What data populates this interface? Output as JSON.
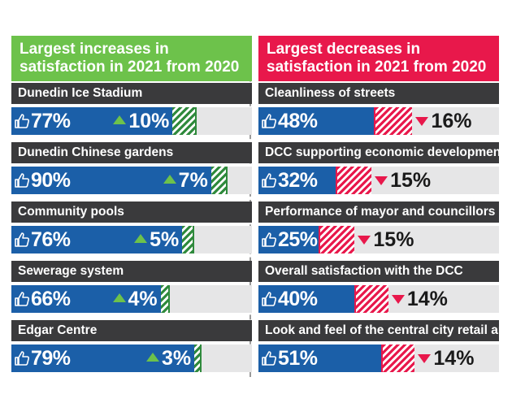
{
  "colors": {
    "increase_header": "#6dc24b",
    "decrease_header": "#e8184b",
    "bar_fill": "#1b5fa8",
    "label_bg": "#3a3a3c",
    "up_hatch": "#2f8a3c",
    "down_hatch": "#e8184b"
  },
  "icons": {
    "satisfaction": "thumbs-up-icon",
    "increase": "triangle-up-icon",
    "decrease": "triangle-down-icon"
  },
  "chart_data": [
    {
      "type": "bar",
      "title": "Largest increases in satisfaction in 2021 from 2020",
      "unit": "%",
      "items": [
        {
          "label": "Dunedin Ice Stadium",
          "value": 77,
          "value_text": "77%",
          "change": 10,
          "change_text": "10%"
        },
        {
          "label": "Dunedin Chinese gardens",
          "value": 90,
          "value_text": "90%",
          "change": 7,
          "change_text": "7%"
        },
        {
          "label": "Community pools",
          "value": 76,
          "value_text": "76%",
          "change": 5,
          "change_text": "5%"
        },
        {
          "label": "Sewerage system",
          "value": 66,
          "value_text": "66%",
          "change": 4,
          "change_text": "4%"
        },
        {
          "label": "Edgar Centre",
          "value": 79,
          "value_text": "79%",
          "change": 3,
          "change_text": "3%"
        }
      ]
    },
    {
      "type": "bar",
      "title": "Largest decreases in satisfaction in 2021 from 2020",
      "unit": "%",
      "items": [
        {
          "label": "Cleanliness of streets",
          "value": 48,
          "value_text": "48%",
          "change": -16,
          "change_text": "16%"
        },
        {
          "label": "DCC supporting economic development",
          "value": 32,
          "value_text": "32%",
          "change": -15,
          "change_text": "15%"
        },
        {
          "label": "Performance of mayor and councillors",
          "value": 25,
          "value_text": "25%",
          "change": -15,
          "change_text": "15%"
        },
        {
          "label": "Overall satisfaction with the DCC",
          "value": 40,
          "value_text": "40%",
          "change": -14,
          "change_text": "14%"
        },
        {
          "label": "Look and feel of the central city retail area",
          "value": 51,
          "value_text": "51%",
          "change": -14,
          "change_text": "14%"
        }
      ]
    }
  ]
}
